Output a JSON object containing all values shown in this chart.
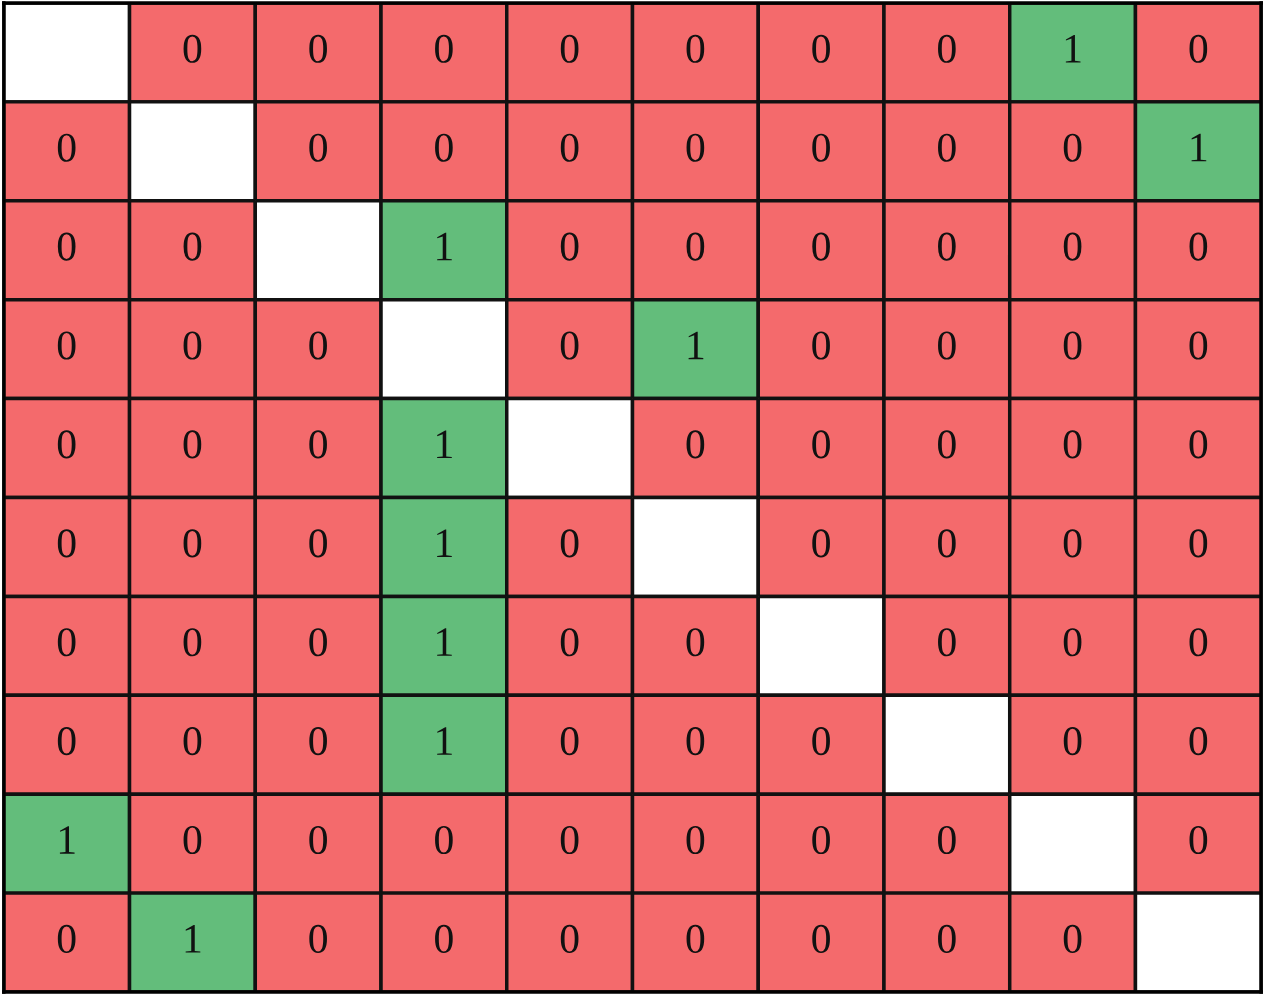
{
  "chart_data": {
    "type": "heatmap",
    "categories": [
      null,
      null,
      null,
      null,
      null,
      null,
      null,
      null,
      null,
      null
    ],
    "y_categories": [
      null,
      null,
      null,
      null,
      null,
      null,
      null,
      null,
      null,
      null
    ],
    "cells": [
      [
        null,
        0,
        0,
        0,
        0,
        0,
        0,
        0,
        1,
        0
      ],
      [
        0,
        null,
        0,
        0,
        0,
        0,
        0,
        0,
        0,
        1
      ],
      [
        0,
        0,
        null,
        1,
        0,
        0,
        0,
        0,
        0,
        0
      ],
      [
        0,
        0,
        0,
        null,
        0,
        1,
        0,
        0,
        0,
        0
      ],
      [
        0,
        0,
        0,
        1,
        null,
        0,
        0,
        0,
        0,
        0
      ],
      [
        0,
        0,
        0,
        1,
        0,
        null,
        0,
        0,
        0,
        0
      ],
      [
        0,
        0,
        0,
        1,
        0,
        0,
        null,
        0,
        0,
        0
      ],
      [
        0,
        0,
        0,
        1,
        0,
        0,
        0,
        null,
        0,
        0
      ],
      [
        1,
        0,
        0,
        0,
        0,
        0,
        0,
        0,
        null,
        0
      ],
      [
        0,
        1,
        0,
        0,
        0,
        0,
        0,
        0,
        0,
        null
      ]
    ],
    "colors": [
      "#f46a6c",
      "#63bd7b"
    ],
    "data_labels": true
  }
}
